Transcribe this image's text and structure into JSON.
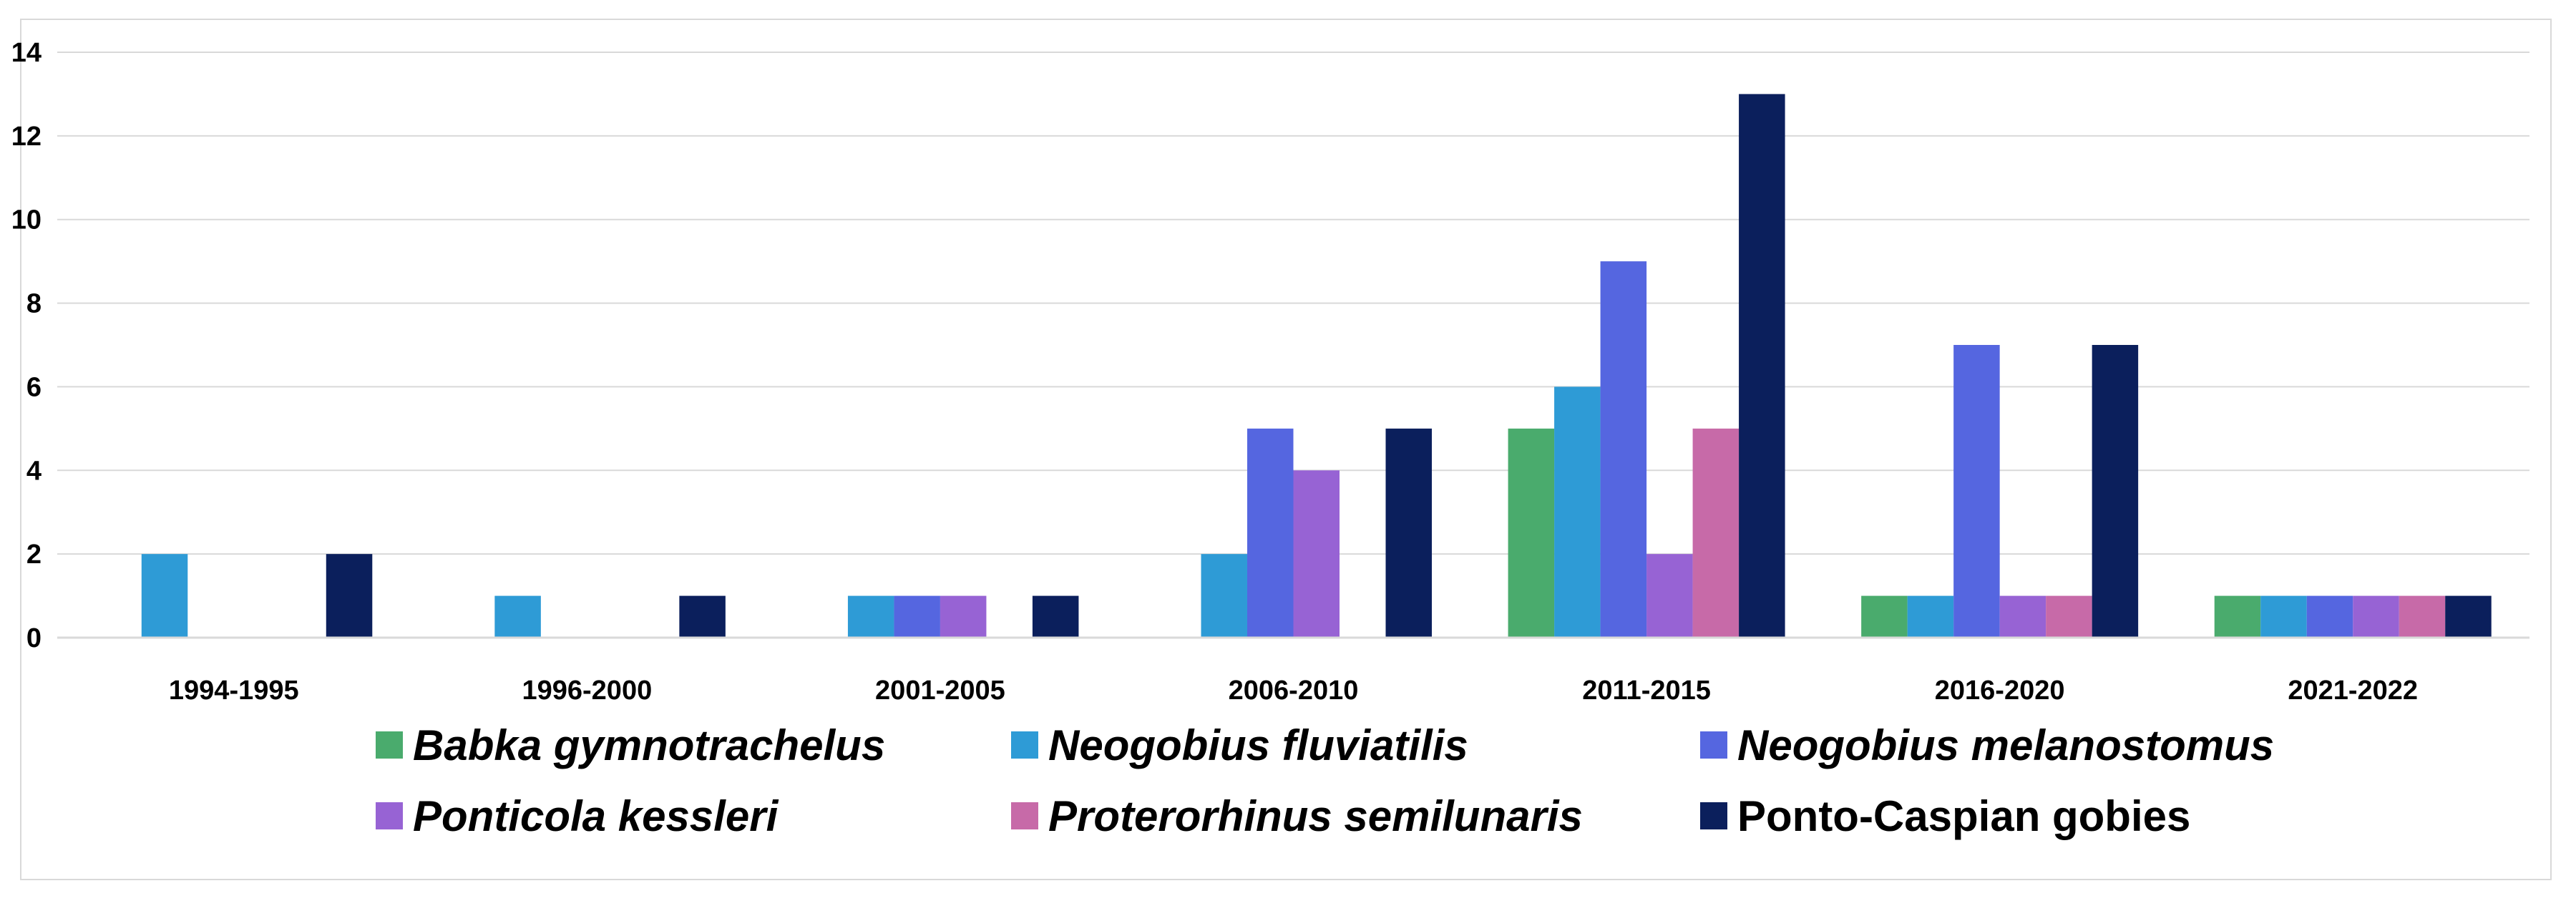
{
  "chart_data": {
    "type": "bar",
    "title": "",
    "xlabel": "",
    "ylabel": "",
    "ylim": [
      0,
      14
    ],
    "yticks": [
      0,
      2,
      4,
      6,
      8,
      10,
      12,
      14
    ],
    "grid": true,
    "legend_position": "bottom",
    "categories": [
      "1994-1995",
      "1996-2000",
      "2001-2005",
      "2006-2010",
      "2011-2015",
      "2016-2020",
      "2021-2022"
    ],
    "series": [
      {
        "name": "Babka gymnotrachelus",
        "italic": true,
        "color": "#4aab6d",
        "values": [
          0,
          0,
          0,
          0,
          5,
          1,
          1
        ]
      },
      {
        "name": "Neogobius fluviatilis",
        "italic": true,
        "color": "#2e9bd6",
        "values": [
          2,
          1,
          1,
          2,
          6,
          1,
          1
        ]
      },
      {
        "name": "Neogobius melanostomus",
        "italic": true,
        "color": "#5566e0",
        "values": [
          0,
          0,
          1,
          5,
          9,
          7,
          1
        ]
      },
      {
        "name": "Ponticola kessleri",
        "italic": true,
        "color": "#9763d4",
        "values": [
          0,
          0,
          1,
          4,
          2,
          1,
          1
        ]
      },
      {
        "name": "Proterorhinus semilunaris",
        "italic": true,
        "color": "#c76aa8",
        "values": [
          0,
          0,
          0,
          0,
          5,
          1,
          1
        ]
      },
      {
        "name": "Ponto-Caspian gobies",
        "italic": false,
        "color": "#0b1f5c",
        "values": [
          2,
          1,
          1,
          5,
          13,
          7,
          1
        ]
      }
    ]
  }
}
